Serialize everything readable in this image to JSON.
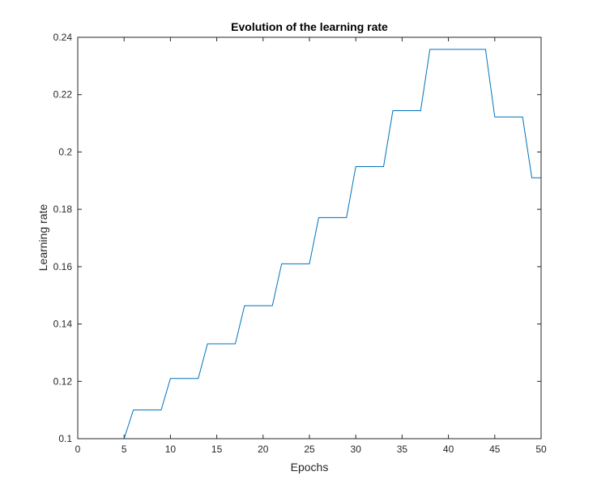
{
  "chart_data": {
    "type": "line",
    "title": "Evolution of the learning rate",
    "xlabel": "Epochs",
    "ylabel": "Learning rate",
    "xlim": [
      0,
      50
    ],
    "ylim": [
      0.1,
      0.24
    ],
    "xticks": [
      "0",
      "5",
      "10",
      "15",
      "20",
      "25",
      "30",
      "35",
      "40",
      "45",
      "50"
    ],
    "yticks": [
      "0.1",
      "0.12",
      "0.14",
      "0.16",
      "0.18",
      "0.2",
      "0.22",
      "0.24"
    ],
    "grid": false,
    "line_color": "#0072bd",
    "series": [
      {
        "x": [
          1,
          5,
          6,
          9,
          10,
          13,
          14,
          17,
          18,
          21,
          22,
          25,
          26,
          29,
          30,
          33,
          34,
          37,
          38,
          44,
          45,
          48,
          49,
          50
        ],
        "y": [
          0.1,
          0.1,
          0.11,
          0.11,
          0.121,
          0.121,
          0.1331,
          0.1331,
          0.1464,
          0.1464,
          0.161,
          0.161,
          0.1771,
          0.1771,
          0.1949,
          0.1949,
          0.2144,
          0.2144,
          0.2358,
          0.2358,
          0.2122,
          0.2122,
          0.191,
          0.191
        ]
      }
    ]
  }
}
